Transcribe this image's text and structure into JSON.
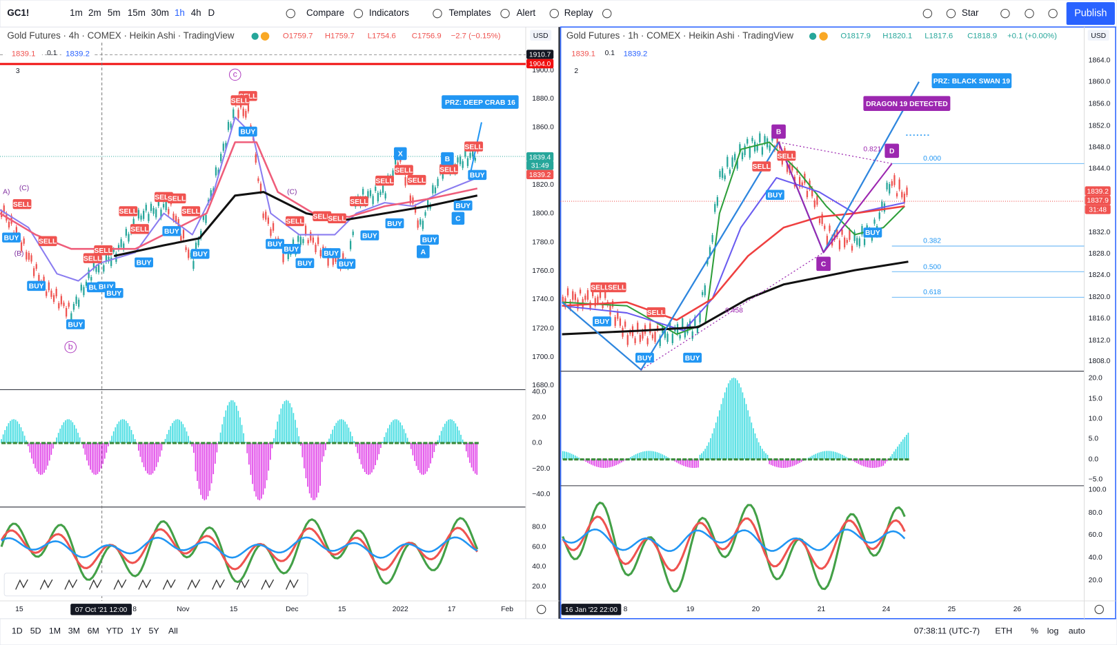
{
  "toolbar": {
    "symbol": "GC1!",
    "intervals": [
      "1m",
      "2m",
      "5m",
      "15m",
      "30m",
      "1h",
      "4h",
      "D"
    ],
    "compare": "Compare",
    "indicators": "Indicators",
    "templates": "Templates",
    "alert": "Alert",
    "replay": "Replay",
    "layout": "Star",
    "publish": "Publish"
  },
  "left": {
    "legend": "Gold Futures · 4h · COMEX · Heikin Ashi · TradingView",
    "ohlc": [
      "O1759.7",
      "H1759.7",
      "L1754.6",
      "C1756.9",
      "−2.7 (−0.15%)"
    ],
    "bid": "1839.1",
    "spread": "0.1",
    "ask": "1839.2",
    "collapsed": "3",
    "currency": "USD",
    "price_axis": [
      "1900.0",
      "1880.0",
      "1860.0",
      "1820.0",
      "1800.0",
      "1780.0",
      "1760.0",
      "1740.0",
      "1720.0",
      "1700.0",
      "1680.0"
    ],
    "price_tags": [
      "1910.7",
      "1904.0",
      "1839.4",
      "31:49",
      "1839.2"
    ],
    "osc1_axis": [
      "40.0",
      "20.0",
      "0.0",
      "−20.0",
      "−40.0"
    ],
    "osc2_axis": [
      "80.0",
      "60.0",
      "40.0",
      "20.0"
    ],
    "time_axis": [
      "15",
      "8",
      "Nov",
      "15",
      "Dec",
      "15",
      "2022",
      "17",
      "Feb"
    ],
    "crosshair_time": "07 Oct '21   12:00",
    "signals": [
      "SELL",
      "SELL",
      "BUY",
      "SELL",
      "SELL",
      "SELL",
      "SELL",
      "SELL",
      "SELL",
      "SELL",
      "SELL",
      "SELL",
      "BUY",
      "BUY",
      "BUY",
      "BUY",
      "BUY",
      "BUY",
      "BUY",
      "BUY",
      "BUY",
      "BUY",
      "BUY",
      "BUY",
      "BUY",
      "BUY",
      "SELL",
      "SELL",
      "SELL",
      "SELL",
      "SELL",
      "SELL",
      "SELL",
      "BUY",
      "BUY",
      "BUY",
      "SELL",
      "SELL",
      "BUY",
      "BUY"
    ],
    "pattern": [
      "X",
      "B",
      "A",
      "C"
    ],
    "waves": [
      "c",
      "b"
    ],
    "wave_small": [
      "A)",
      "(C)",
      "(B)",
      "(C)"
    ],
    "prz": "PRZ: DEEP CRAB 16"
  },
  "right": {
    "legend": "Gold Futures · 1h · COMEX · Heikin Ashi · TradingView",
    "ohlc": [
      "O1817.9",
      "H1820.1",
      "L1817.6",
      "C1818.9",
      "+0.1 (+0.00%)"
    ],
    "bid": "1839.1",
    "spread": "0.1",
    "ask": "1839.2",
    "collapsed": "2",
    "currency": "USD",
    "price_axis": [
      "1864.0",
      "1860.0",
      "1856.0",
      "1852.0",
      "1848.0",
      "1844.0",
      "1832.0",
      "1828.0",
      "1824.0",
      "1820.0",
      "1816.0",
      "1812.0",
      "1808.0"
    ],
    "price_tags": [
      "1839.2",
      "1837.9",
      "31:48"
    ],
    "osc1_axis": [
      "20.0",
      "15.0",
      "10.0",
      "5.0",
      "0.0",
      "−5.0"
    ],
    "osc2_axis": [
      "100.0",
      "80.0",
      "60.0",
      "40.0",
      "20.0"
    ],
    "time_axis": [
      "8",
      "19",
      "20",
      "21",
      "24",
      "25",
      "26"
    ],
    "crosshair_time": "16 Jan '22   22:00",
    "signals": [
      "SELL",
      "SELL",
      "SELL",
      "BUY",
      "BUY",
      "BUY",
      "SELL",
      "SELL",
      "BUY",
      "BUY"
    ],
    "pattern": [
      "B",
      "D",
      "C"
    ],
    "fib": [
      "0.821",
      "0.000",
      "0.382",
      "0.500",
      "0.618",
      "0.458"
    ],
    "prz": "PRZ: BLACK SWAN 19",
    "alert": "DRAGON 19 DETECTED"
  },
  "bottom": {
    "ranges": [
      "1D",
      "5D",
      "1M",
      "3M",
      "6M",
      "YTD",
      "1Y",
      "5Y",
      "All"
    ],
    "clock": "07:38:11 (UTC-7)",
    "session": "ETH",
    "percent": "%",
    "log": "log",
    "auto": "auto"
  }
}
